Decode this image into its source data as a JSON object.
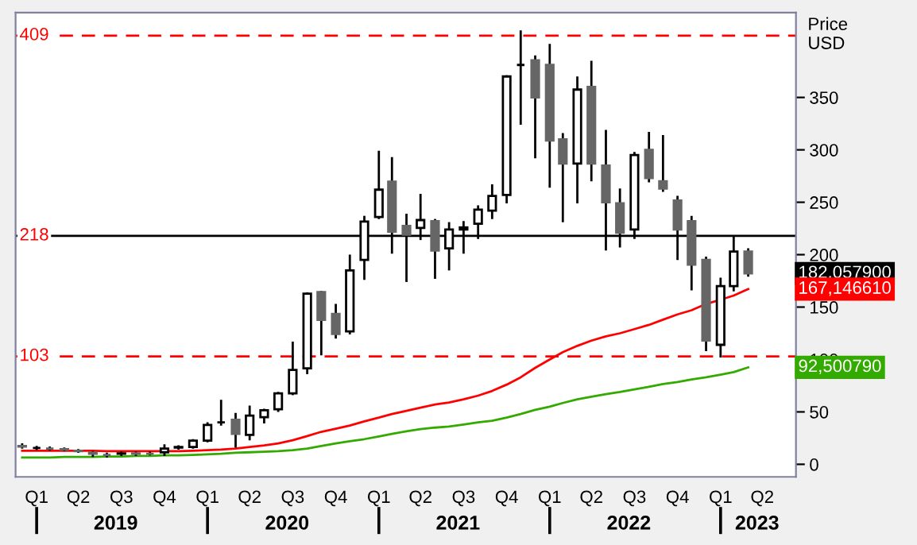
{
  "chart_data": {
    "type": "candlestick",
    "x": [
      "2019-01",
      "2019-02",
      "2019-03",
      "2019-04",
      "2019-05",
      "2019-06",
      "2019-07",
      "2019-08",
      "2019-09",
      "2019-10",
      "2019-11",
      "2019-12",
      "2020-01",
      "2020-02",
      "2020-03",
      "2020-04",
      "2020-05",
      "2020-06",
      "2020-07",
      "2020-08",
      "2020-09",
      "2020-10",
      "2020-11",
      "2020-12",
      "2021-01",
      "2021-02",
      "2021-03",
      "2021-04",
      "2021-05",
      "2021-06",
      "2021-07",
      "2021-08",
      "2021-09",
      "2021-10",
      "2021-11",
      "2021-12",
      "2022-01",
      "2022-02",
      "2022-03",
      "2022-04",
      "2022-05",
      "2022-06",
      "2022-07",
      "2022-08",
      "2022-09",
      "2022-10",
      "2022-11",
      "2022-12",
      "2023-01",
      "2023-02",
      "2023-03",
      "2023-04"
    ],
    "ohlc": [
      [
        17,
        19,
        16,
        17.5
      ],
      [
        15.5,
        16.5,
        14.5,
        15.5
      ],
      [
        15,
        16,
        14,
        15
      ],
      [
        14.5,
        15,
        13.5,
        14
      ],
      [
        13,
        13.5,
        12,
        12.5
      ],
      [
        11,
        11.5,
        8,
        10
      ],
      [
        9,
        10,
        7.5,
        9
      ],
      [
        10,
        11,
        9,
        10.5
      ],
      [
        10.5,
        11,
        9,
        10
      ],
      [
        10,
        11,
        9.5,
        10
      ],
      [
        11.5,
        18,
        9,
        15
      ],
      [
        16,
        17,
        15,
        16.5
      ],
      [
        16.5,
        23,
        16,
        22.5
      ],
      [
        22.5,
        39,
        22,
        37.5
      ],
      [
        40,
        60.5,
        38,
        40
      ],
      [
        42.5,
        48,
        17,
        29
      ],
      [
        28,
        55,
        24,
        46.5
      ],
      [
        45,
        52,
        40,
        51.6
      ],
      [
        52.5,
        68,
        51,
        67.7
      ],
      [
        67.7,
        116,
        67,
        90
      ],
      [
        91.5,
        163,
        87,
        162.8
      ],
      [
        164.4,
        164.4,
        105,
        137.8
      ],
      [
        143.4,
        152,
        121,
        124.4
      ],
      [
        126.8,
        199,
        125,
        185
      ],
      [
        195,
        236,
        177,
        231.6
      ],
      [
        236,
        298,
        235,
        262
      ],
      [
        269.6,
        292,
        202,
        222
      ],
      [
        227.5,
        238,
        175,
        219
      ],
      [
        225.6,
        257,
        215,
        233
      ],
      [
        232,
        233,
        178,
        204
      ],
      [
        206,
        230,
        186,
        224
      ],
      [
        224,
        231,
        202,
        226
      ],
      [
        229.5,
        246,
        216,
        243
      ],
      [
        242,
        266,
        235,
        256
      ],
      [
        257,
        370,
        250,
        370
      ],
      [
        381,
        413,
        325,
        381
      ],
      [
        385.5,
        389,
        293,
        350
      ],
      [
        381,
        400,
        265,
        309
      ],
      [
        310,
        315,
        232,
        287
      ],
      [
        287,
        369,
        250,
        357.5
      ],
      [
        360,
        384,
        271,
        287
      ],
      [
        285,
        318,
        205,
        250
      ],
      [
        249,
        262,
        208,
        221
      ],
      [
        224,
        297,
        216,
        295
      ],
      [
        300,
        316,
        270,
        273
      ],
      [
        270,
        313,
        261,
        263
      ],
      [
        251.7,
        255,
        196,
        224
      ],
      [
        232,
        236,
        167,
        190.5
      ],
      [
        195,
        197,
        109,
        118
      ],
      [
        114,
        177,
        103,
        170
      ],
      [
        170,
        217,
        166,
        203
      ],
      [
        203,
        205,
        180,
        182.0579
      ]
    ],
    "colors": [
      "#666666",
      "#000000",
      "#666666",
      "#666666",
      "#666666",
      "#666666",
      "#666666",
      "#ffffff",
      "#666666",
      "#666666",
      "#ffffff",
      "#000000",
      "#ffffff",
      "#ffffff",
      "#000000",
      "#666666",
      "#ffffff",
      "#ffffff",
      "#ffffff",
      "#ffffff",
      "#ffffff",
      "#666666",
      "#666666",
      "#ffffff",
      "#ffffff",
      "#ffffff",
      "#666666",
      "#666666",
      "#ffffff",
      "#666666",
      "#ffffff",
      "#ffffff",
      "#ffffff",
      "#ffffff",
      "#ffffff",
      "#000000",
      "#666666",
      "#666666",
      "#666666",
      "#ffffff",
      "#666666",
      "#666666",
      "#666666",
      "#ffffff",
      "#666666",
      "#666666",
      "#666666",
      "#666666",
      "#666666",
      "#ffffff",
      "#ffffff",
      "#666666"
    ],
    "series": [
      {
        "type": "line",
        "color": "#ff0000",
        "values": [
          13,
          13,
          13,
          13,
          13,
          13,
          12.5,
          12.5,
          12.5,
          12.5,
          12.5,
          12.5,
          13,
          13.5,
          14,
          15,
          16.5,
          18,
          20,
          23,
          27,
          31,
          34,
          37,
          41,
          44.5,
          48,
          51,
          54,
          57,
          59,
          62,
          65.5,
          70,
          76,
          83,
          92,
          100,
          107,
          113,
          118,
          122,
          125,
          129,
          133,
          138,
          143,
          147,
          153,
          157,
          161,
          167.14661
        ]
      },
      {
        "type": "line",
        "color": "#33aa00",
        "values": [
          6.5,
          6.5,
          6.5,
          7,
          7,
          7,
          7.5,
          7.5,
          8,
          8,
          8.5,
          8.5,
          9,
          9.5,
          10,
          11,
          11.5,
          12,
          12.5,
          13.5,
          15,
          17.5,
          20,
          22,
          24,
          26.5,
          29,
          31.5,
          33.5,
          35,
          36,
          38,
          40,
          41.5,
          44.5,
          48,
          52,
          55,
          58.5,
          62,
          64.5,
          67,
          69,
          71.5,
          74,
          76.5,
          78.5,
          81,
          83,
          85.5,
          88,
          92.50079
        ]
      }
    ],
    "ylabel": "Price\nUSD",
    "ylim": [
      -12,
      431
    ],
    "yticks": [
      0,
      50,
      100,
      150,
      200,
      250,
      300,
      350
    ],
    "xlim": [
      "2018-12-18",
      "2023-07-12"
    ],
    "xticks": [
      {
        "value": "2019-02-01",
        "label": "Q1"
      },
      {
        "value": "2019-05-01",
        "label": "Q2"
      },
      {
        "value": "2019-08-01",
        "label": "Q3"
      },
      {
        "value": "2019-11-01",
        "label": "Q4"
      },
      {
        "value": "2020-02-01",
        "label": "Q1"
      },
      {
        "value": "2020-05-01",
        "label": "Q2"
      },
      {
        "value": "2020-08-01",
        "label": "Q3"
      },
      {
        "value": "2020-11-01",
        "label": "Q4"
      },
      {
        "value": "2021-02-01",
        "label": "Q1"
      },
      {
        "value": "2021-05-01",
        "label": "Q2"
      },
      {
        "value": "2021-08-01",
        "label": "Q3"
      },
      {
        "value": "2021-11-01",
        "label": "Q4"
      },
      {
        "value": "2022-02-01",
        "label": "Q1"
      },
      {
        "value": "2022-05-01",
        "label": "Q2"
      },
      {
        "value": "2022-08-01",
        "label": "Q3"
      },
      {
        "value": "2022-11-01",
        "label": "Q4"
      },
      {
        "value": "2023-02-01",
        "label": "Q1"
      },
      {
        "value": "2023-05-01",
        "label": "Q2"
      }
    ],
    "ref_lines": [
      {
        "axis": "y",
        "value": 409,
        "label": "409",
        "color": "#ff0000",
        "line_style": "dashed"
      },
      {
        "axis": "y",
        "value": 218,
        "label": "218",
        "color": "#000000",
        "line_style": "solid"
      },
      {
        "axis": "y",
        "value": 103,
        "label": "103",
        "color": "#ff0000",
        "line_style": "dashed"
      }
    ],
    "annotations": [
      {
        "text": "182,057900",
        "x": "2023-04",
        "y": 182.0579
      },
      {
        "text": "167,146610",
        "x": "2023-04",
        "y": 167.14661
      },
      {
        "text": "92,500790",
        "x": "2023-04",
        "y": 92.50079
      }
    ],
    "x2lim": [
      "2018-12-18",
      "2023-07-12"
    ],
    "x2ticks": [
      {
        "value": "2019-07-20",
        "label": "2019"
      },
      {
        "value": "2020-07-20",
        "label": "2020"
      },
      {
        "value": "2021-07-20",
        "label": "2021"
      },
      {
        "value": "2022-07-20",
        "label": "2022"
      },
      {
        "value": "2023-04-20",
        "label": "2023"
      }
    ],
    "grid": false,
    "legend": false
  }
}
